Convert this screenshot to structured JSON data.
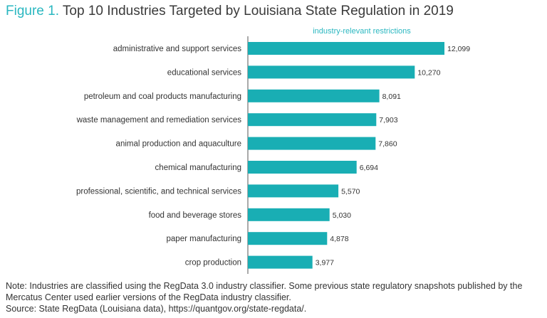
{
  "title": {
    "figure_label": "Figure 1.",
    "text": "Top 10 Industries Targeted by Louisiana State Regulation in 2019"
  },
  "colors": {
    "accent": "#2ab7c0",
    "bar": "#19aeb4",
    "axis": "#555555",
    "text": "#333333"
  },
  "chart_data": {
    "type": "bar",
    "orientation": "horizontal",
    "series": [
      {
        "name": "industry-relevant restrictions",
        "values": [
          12099,
          10270,
          8091,
          7903,
          7860,
          6694,
          5570,
          5030,
          4878,
          3977
        ]
      }
    ],
    "categories": [
      "administrative and support services",
      "educational services",
      "petroleum and coal products manufacturing",
      "waste management and remediation services",
      "animal production and aquaculture",
      "chemical manufacturing",
      "professional, scientific, and technical services",
      "food and beverage stores",
      "paper manufacturing",
      "crop production"
    ],
    "value_labels": [
      "12,099",
      "10,270",
      "8,091",
      "7,903",
      "7,860",
      "6,694",
      "5,570",
      "5,030",
      "4,878",
      "3,977"
    ],
    "xlim": [
      0,
      12099
    ],
    "legend": "top",
    "grid": false
  },
  "footer": {
    "note": "Note: Industries are classified using the RegData 3.0 industry classifier. Some previous state regulatory snapshots published by the Mercatus Center used earlier versions of the RegData industry classifier.",
    "source": "Source: State RegData (Louisiana data), https://quantgov.org/state-regdata/."
  }
}
